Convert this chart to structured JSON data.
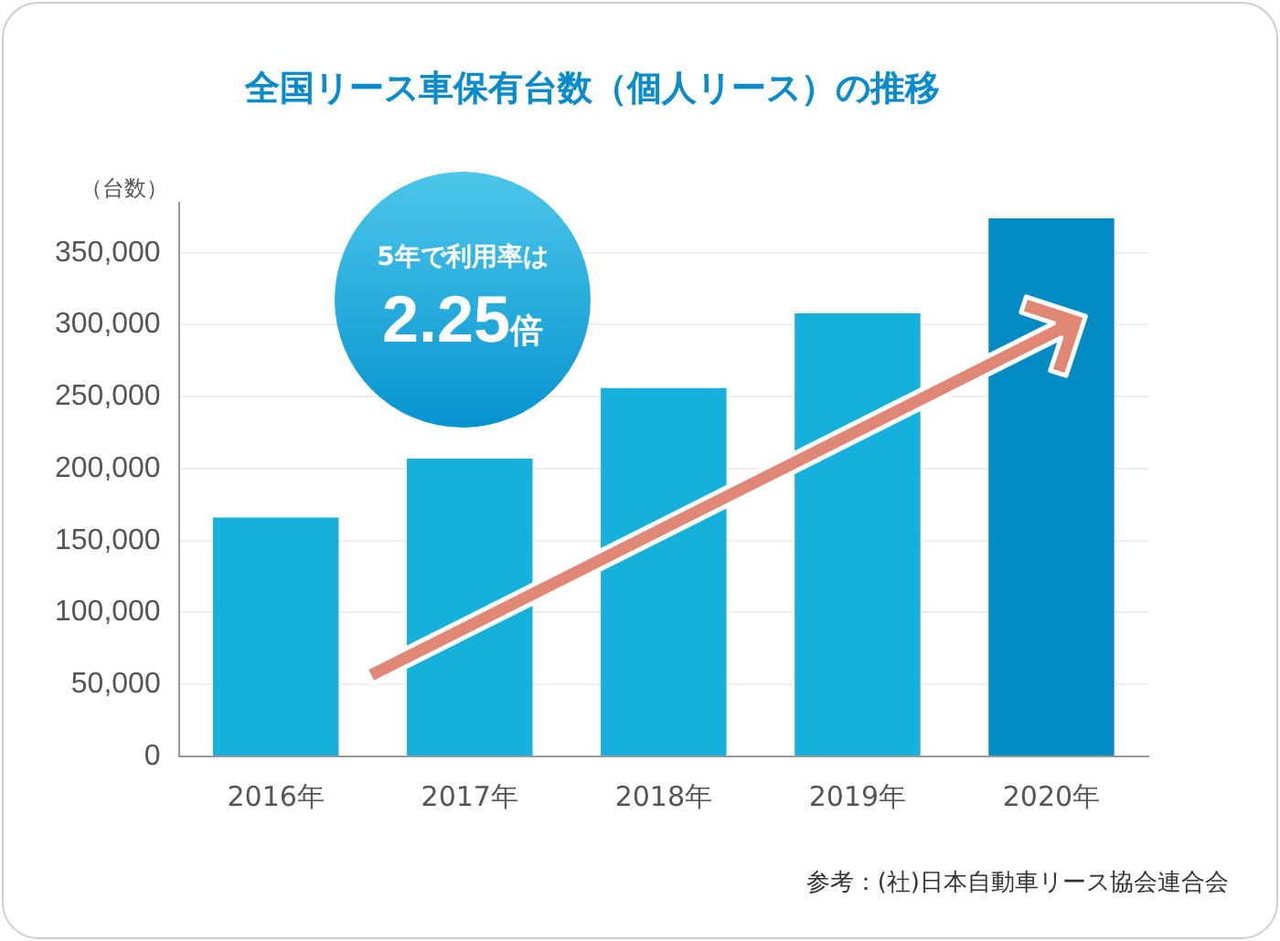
{
  "chart_data": {
    "type": "bar",
    "title": "全国リース車保有台数（個人リース）の推移",
    "ylabel": "（台数）",
    "categories": [
      "2016年",
      "2017年",
      "2018年",
      "2019年",
      "2020年"
    ],
    "values": [
      166000,
      207000,
      256000,
      308000,
      374000
    ],
    "colors": [
      "#16b0dc",
      "#16b0dc",
      "#16b0dc",
      "#16b0dc",
      "#038cc3"
    ],
    "ylim": [
      0,
      385000
    ],
    "yticks": [
      {
        "value": 0,
        "label": "0"
      },
      {
        "value": 50000,
        "label": "50,000"
      },
      {
        "value": 100000,
        "label": "100,000"
      },
      {
        "value": 150000,
        "label": "150,000"
      },
      {
        "value": 200000,
        "label": "200,000"
      },
      {
        "value": 250000,
        "label": "250,000"
      },
      {
        "value": 300000,
        "label": "300,000"
      },
      {
        "value": 350000,
        "label": "350,000"
      }
    ],
    "grid": "y",
    "annotations": [
      "5年で利用率は",
      "2.25倍",
      "参考：(社)日本自動車リース協会連合会"
    ]
  }
}
